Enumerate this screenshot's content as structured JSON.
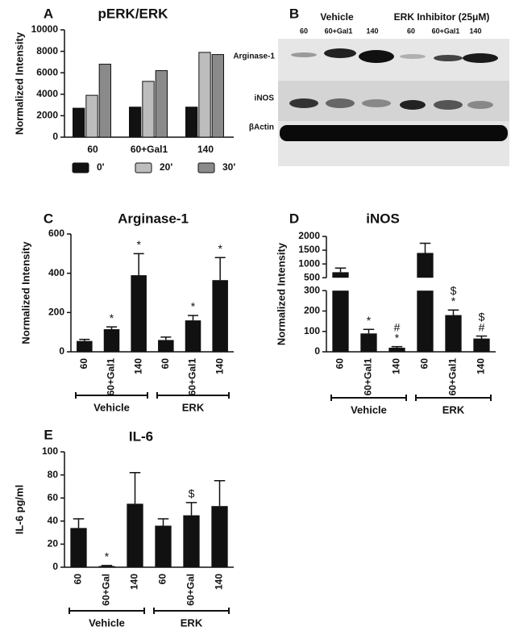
{
  "chart_data": [
    {
      "type": "grouped-bar",
      "panel": "A",
      "title": "pERK/ERK",
      "y_label": "Normalized Intensity",
      "categories": [
        "60",
        "60+Gal1",
        "140"
      ],
      "series": [
        {
          "name": "0'",
          "color": "#111111",
          "values": [
            2700,
            2800,
            2800
          ]
        },
        {
          "name": "20'",
          "color": "#bdbdbd",
          "values": [
            3900,
            5200,
            7900
          ]
        },
        {
          "name": "30'",
          "color": "#8a8a8a",
          "values": [
            6800,
            6200,
            7700
          ]
        }
      ],
      "ylim": [
        0,
        10000
      ],
      "yticks": [
        0,
        2000,
        4000,
        6000,
        8000,
        10000
      ],
      "legend": "bottom"
    },
    {
      "type": "bar",
      "panel": "C",
      "title": "Arginase-1",
      "y_label": "Normalized Intensity",
      "categories": [
        "60",
        "60+Gal1",
        "140",
        "60",
        "60+Gal1",
        "140"
      ],
      "values": [
        55,
        115,
        390,
        60,
        160,
        365
      ],
      "errors": [
        8,
        12,
        110,
        15,
        25,
        115
      ],
      "annotations": [
        null,
        [
          "*"
        ],
        [
          "*"
        ],
        null,
        [
          "*"
        ],
        [
          "*"
        ]
      ],
      "groups": [
        "Vehicle",
        "ERK"
      ],
      "color": "#111111",
      "ylim": [
        0,
        600
      ],
      "yticks": [
        0,
        200,
        400,
        600
      ]
    },
    {
      "type": "bar",
      "panel": "D",
      "title": "iNOS",
      "y_label": "Normalized Intensity",
      "categories": [
        "60",
        "60+Gal1",
        "140",
        "60",
        "60+Gal1",
        "140"
      ],
      "values": [
        700,
        90,
        20,
        1400,
        180,
        65
      ],
      "errors": [
        150,
        20,
        5,
        350,
        25,
        12
      ],
      "annotations": [
        null,
        [
          "*"
        ],
        [
          "#",
          "*"
        ],
        null,
        [
          "$",
          "*"
        ],
        [
          "$",
          "#"
        ]
      ],
      "groups": [
        "Vehicle",
        "ERK"
      ],
      "color": "#111111",
      "ylim": [
        0,
        2000
      ],
      "ybreak": [
        300,
        500
      ],
      "yticks": [
        0,
        100,
        200,
        300,
        500,
        1000,
        1500,
        2000
      ]
    },
    {
      "type": "bar",
      "panel": "E",
      "title": "IL-6",
      "y_label": "IL-6 pg/ml",
      "categories": [
        "60",
        "60+Gal",
        "140",
        "60",
        "60+Gal",
        "140"
      ],
      "values": [
        34,
        1,
        55,
        36,
        45,
        53
      ],
      "errors": [
        8,
        0.5,
        27,
        6,
        11,
        22
      ],
      "annotations": [
        null,
        [
          "*"
        ],
        null,
        null,
        [
          "$"
        ],
        null
      ],
      "groups": [
        "Vehicle",
        "ERK"
      ],
      "color": "#111111",
      "ylim": [
        0,
        100
      ],
      "yticks": [
        0,
        20,
        40,
        60,
        80,
        100
      ]
    }
  ],
  "blot": {
    "panel": "B",
    "groups": [
      "Vehicle",
      "ERK Inhibitor (25μM)"
    ],
    "lanes": [
      "60",
      "60+Gal1",
      "140",
      "60",
      "60+Gal1",
      "140"
    ],
    "rows": [
      "Arginase-1",
      "iNOS",
      "βActin"
    ]
  }
}
